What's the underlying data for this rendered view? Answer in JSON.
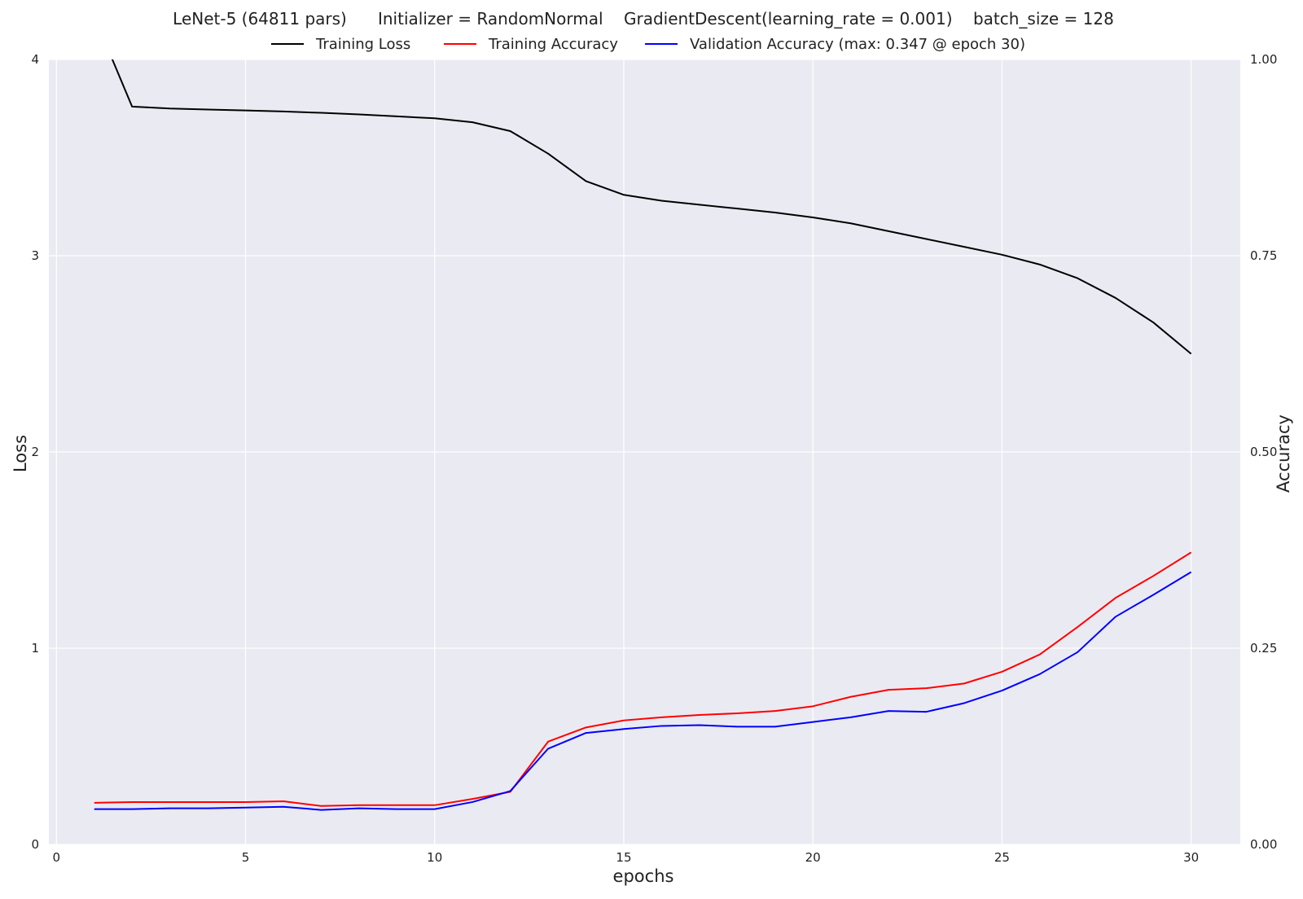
{
  "chart_data": {
    "type": "line",
    "title": "LeNet-5 (64811 pars)      Initializer = RandomNormal    GradientDescent(learning_rate = 0.001)    batch_size = 128",
    "xlabel": "epochs",
    "ylabel_left": "Loss",
    "ylabel_right": "Accuracy",
    "xlim": [
      -0.2,
      31.3
    ],
    "ylim_left": [
      0,
      4
    ],
    "ylim_right": [
      0,
      1
    ],
    "xticks": [
      0,
      5,
      10,
      15,
      20,
      25,
      30
    ],
    "xtick_labels": [
      "0",
      "5",
      "10",
      "15",
      "20",
      "25",
      "30"
    ],
    "yticks_left": [
      0,
      1,
      2,
      3,
      4
    ],
    "ytick_labels_left": [
      "0",
      "1",
      "2",
      "3",
      "4"
    ],
    "yticks_right": [
      0,
      0.25,
      0.5,
      0.75,
      1.0
    ],
    "ytick_labels_right": [
      "0.00",
      "0.25",
      "0.50",
      "0.75",
      "1.00"
    ],
    "grid": true,
    "legend_position": "top-center",
    "x": [
      1,
      2,
      3,
      4,
      5,
      6,
      7,
      8,
      9,
      10,
      11,
      12,
      13,
      14,
      15,
      16,
      17,
      18,
      19,
      20,
      21,
      22,
      23,
      24,
      25,
      26,
      27,
      28,
      29,
      30
    ],
    "series": [
      {
        "name": "Training Loss",
        "axis": "left",
        "color": "#000000",
        "values": [
          4.22,
          3.76,
          3.75,
          3.745,
          3.74,
          3.735,
          3.728,
          3.72,
          3.71,
          3.7,
          3.68,
          3.635,
          3.52,
          3.38,
          3.31,
          3.28,
          3.26,
          3.24,
          3.22,
          3.195,
          3.165,
          3.125,
          3.085,
          3.045,
          3.005,
          2.955,
          2.885,
          2.785,
          2.66,
          2.5
        ]
      },
      {
        "name": "Training Accuracy",
        "axis": "right",
        "color": "#ff0000",
        "values": [
          0.053,
          0.054,
          0.054,
          0.054,
          0.054,
          0.055,
          0.049,
          0.05,
          0.05,
          0.05,
          0.058,
          0.067,
          0.131,
          0.149,
          0.158,
          0.162,
          0.165,
          0.167,
          0.17,
          0.176,
          0.188,
          0.197,
          0.199,
          0.205,
          0.22,
          0.242,
          0.277,
          0.314,
          0.342,
          0.372
        ]
      },
      {
        "name": "Validation Accuracy (max: 0.347 @ epoch 30)",
        "axis": "right",
        "color": "#0000ff",
        "values": [
          0.045,
          0.045,
          0.046,
          0.046,
          0.047,
          0.048,
          0.044,
          0.046,
          0.045,
          0.045,
          0.054,
          0.068,
          0.122,
          0.142,
          0.147,
          0.151,
          0.152,
          0.15,
          0.15,
          0.156,
          0.162,
          0.17,
          0.169,
          0.18,
          0.196,
          0.217,
          0.245,
          0.29,
          0.318,
          0.347
        ]
      }
    ]
  }
}
